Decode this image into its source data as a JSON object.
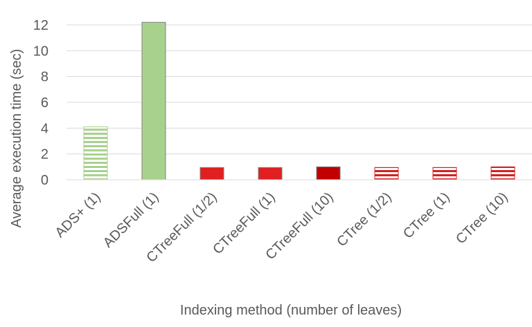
{
  "chart_data": {
    "type": "bar",
    "x_label": "Indexing method (number of leaves)",
    "y_label": "Average execution time (sec)",
    "categories": [
      "ADS+ (1)",
      "ADSFull (1)",
      "CTreeFull (1/2)",
      "CTreeFull (1)",
      "CTreeFull (10)",
      "CTree (1/2)",
      "CTree (1)",
      "CTree (10)"
    ],
    "values": [
      4.1,
      12.2,
      0.95,
      0.95,
      1.0,
      0.95,
      0.95,
      1.0
    ],
    "colors": [
      "#a9d18e",
      "#a9d18e",
      "#e02020",
      "#e02020",
      "#c00000",
      "#d42020",
      "#d42020",
      "#d42020"
    ],
    "patterns": [
      "stripes",
      "solid",
      "solid",
      "solid",
      "solid",
      "stripes",
      "stripes",
      "stripes"
    ],
    "ylim": [
      0,
      12
    ],
    "yticks": [
      0,
      2,
      4,
      6,
      8,
      10,
      12
    ],
    "grid": true
  }
}
